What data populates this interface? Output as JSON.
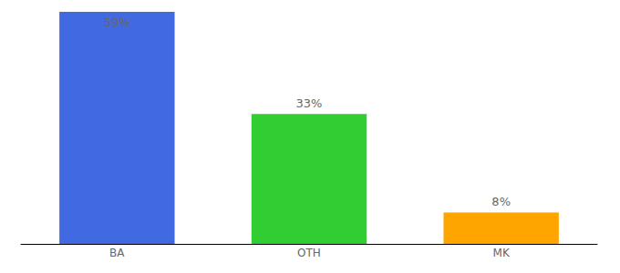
{
  "chart_data": {
    "type": "bar",
    "categories": [
      "BA",
      "OTH",
      "MK"
    ],
    "values": [
      59,
      33,
      8
    ],
    "value_labels": [
      "59%",
      "33%",
      "8%"
    ],
    "colors": [
      "#4169e1",
      "#32cd32",
      "#ffa500"
    ],
    "ylim": [
      0,
      59
    ],
    "data_labels": true,
    "tick_labels": "x",
    "grid": false
  }
}
